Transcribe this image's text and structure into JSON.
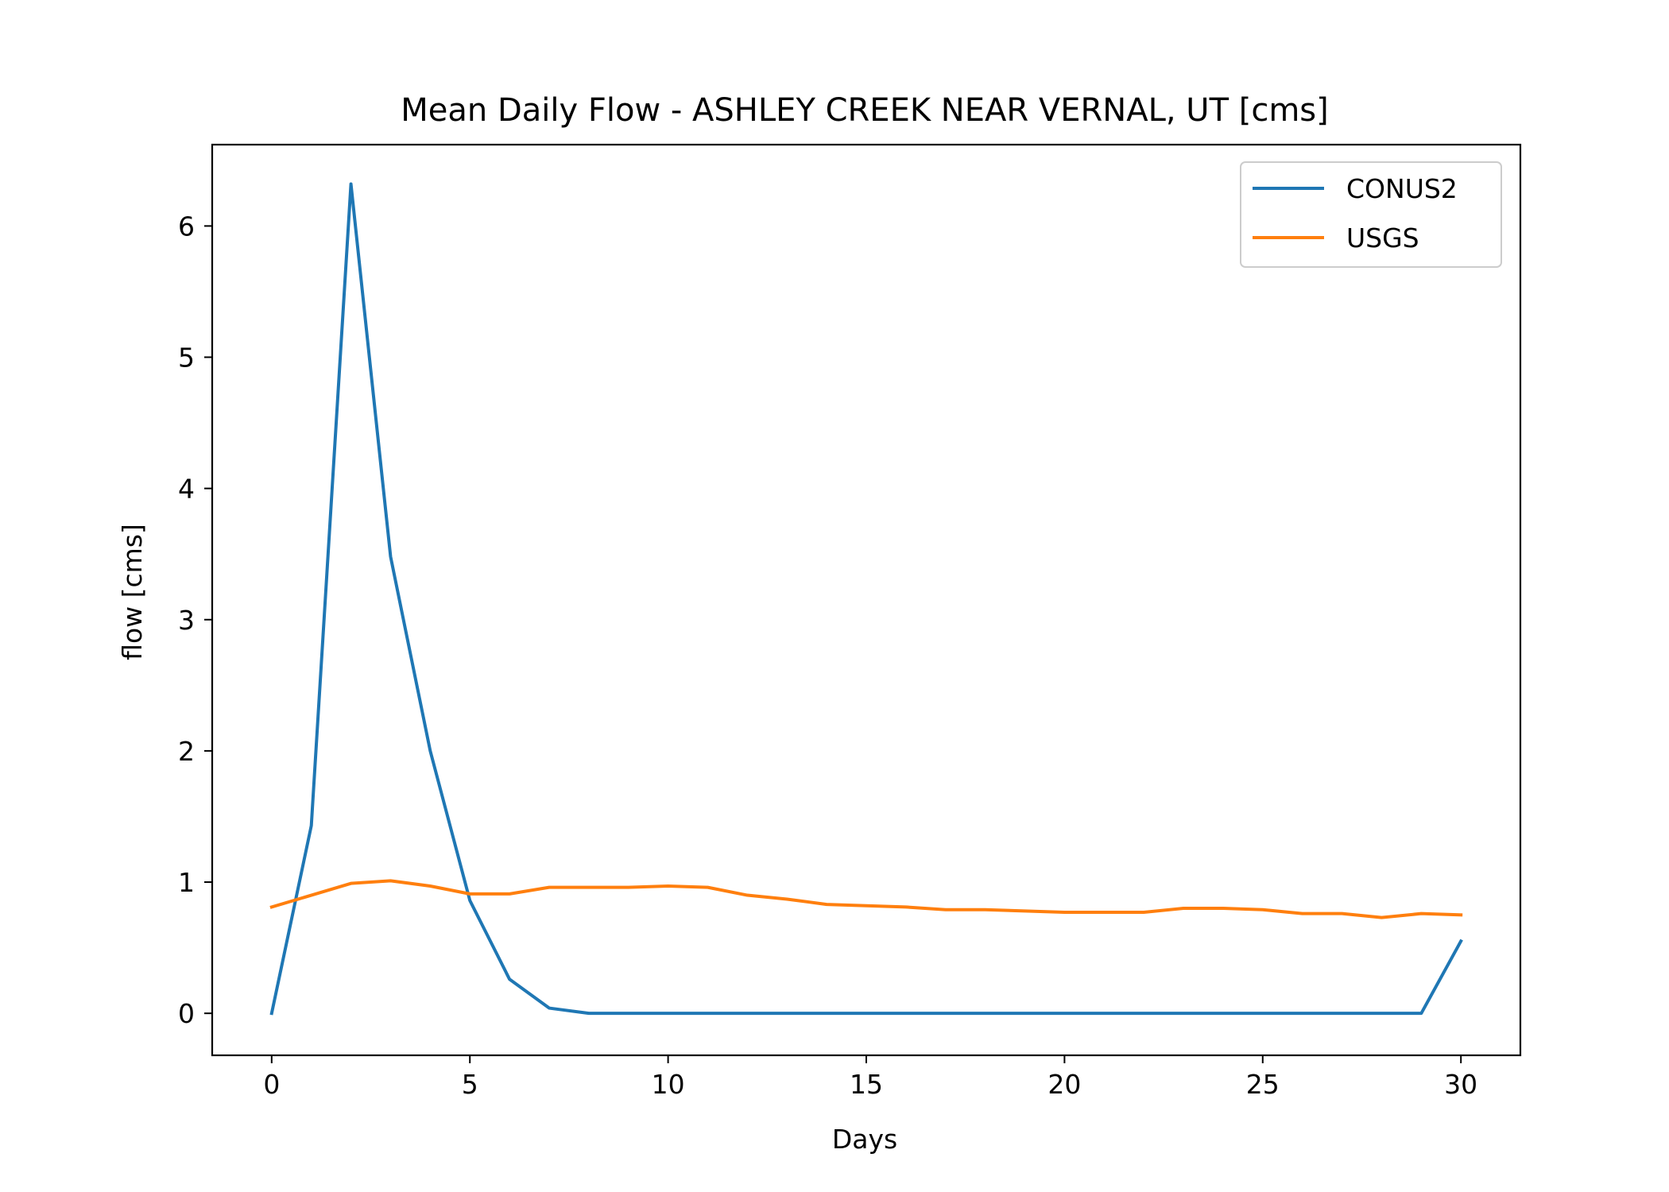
{
  "chart_data": {
    "type": "line",
    "title": "Mean Daily Flow - ASHLEY CREEK NEAR VERNAL, UT [cms]",
    "xlabel": "Days",
    "ylabel": "flow [cms]",
    "xlim": [
      -1.5,
      31.5
    ],
    "ylim": [
      -0.32,
      6.62
    ],
    "xticks": [
      0,
      5,
      10,
      15,
      20,
      25,
      30
    ],
    "yticks": [
      0,
      1,
      2,
      3,
      4,
      5,
      6
    ],
    "grid": false,
    "legend_position": "top-right",
    "x": [
      0,
      1,
      2,
      3,
      4,
      5,
      6,
      7,
      8,
      9,
      10,
      11,
      12,
      13,
      14,
      15,
      16,
      17,
      18,
      19,
      20,
      21,
      22,
      23,
      24,
      25,
      26,
      27,
      28,
      29,
      30
    ],
    "series": [
      {
        "name": "CONUS2",
        "color": "#1f77b4",
        "values": [
          0.0,
          1.43,
          6.32,
          3.48,
          2.0,
          0.86,
          0.26,
          0.04,
          0.0,
          0.0,
          0.0,
          0.0,
          0.0,
          0.0,
          0.0,
          0.0,
          0.0,
          0.0,
          0.0,
          0.0,
          0.0,
          0.0,
          0.0,
          0.0,
          0.0,
          0.0,
          0.0,
          0.0,
          0.0,
          0.0,
          0.55
        ]
      },
      {
        "name": "USGS",
        "color": "#ff7f0e",
        "values": [
          0.81,
          0.9,
          0.99,
          1.01,
          0.97,
          0.91,
          0.91,
          0.96,
          0.96,
          0.96,
          0.97,
          0.96,
          0.9,
          0.87,
          0.83,
          0.82,
          0.81,
          0.79,
          0.79,
          0.78,
          0.77,
          0.77,
          0.77,
          0.8,
          0.8,
          0.79,
          0.76,
          0.76,
          0.73,
          0.76,
          0.75
        ]
      }
    ]
  }
}
